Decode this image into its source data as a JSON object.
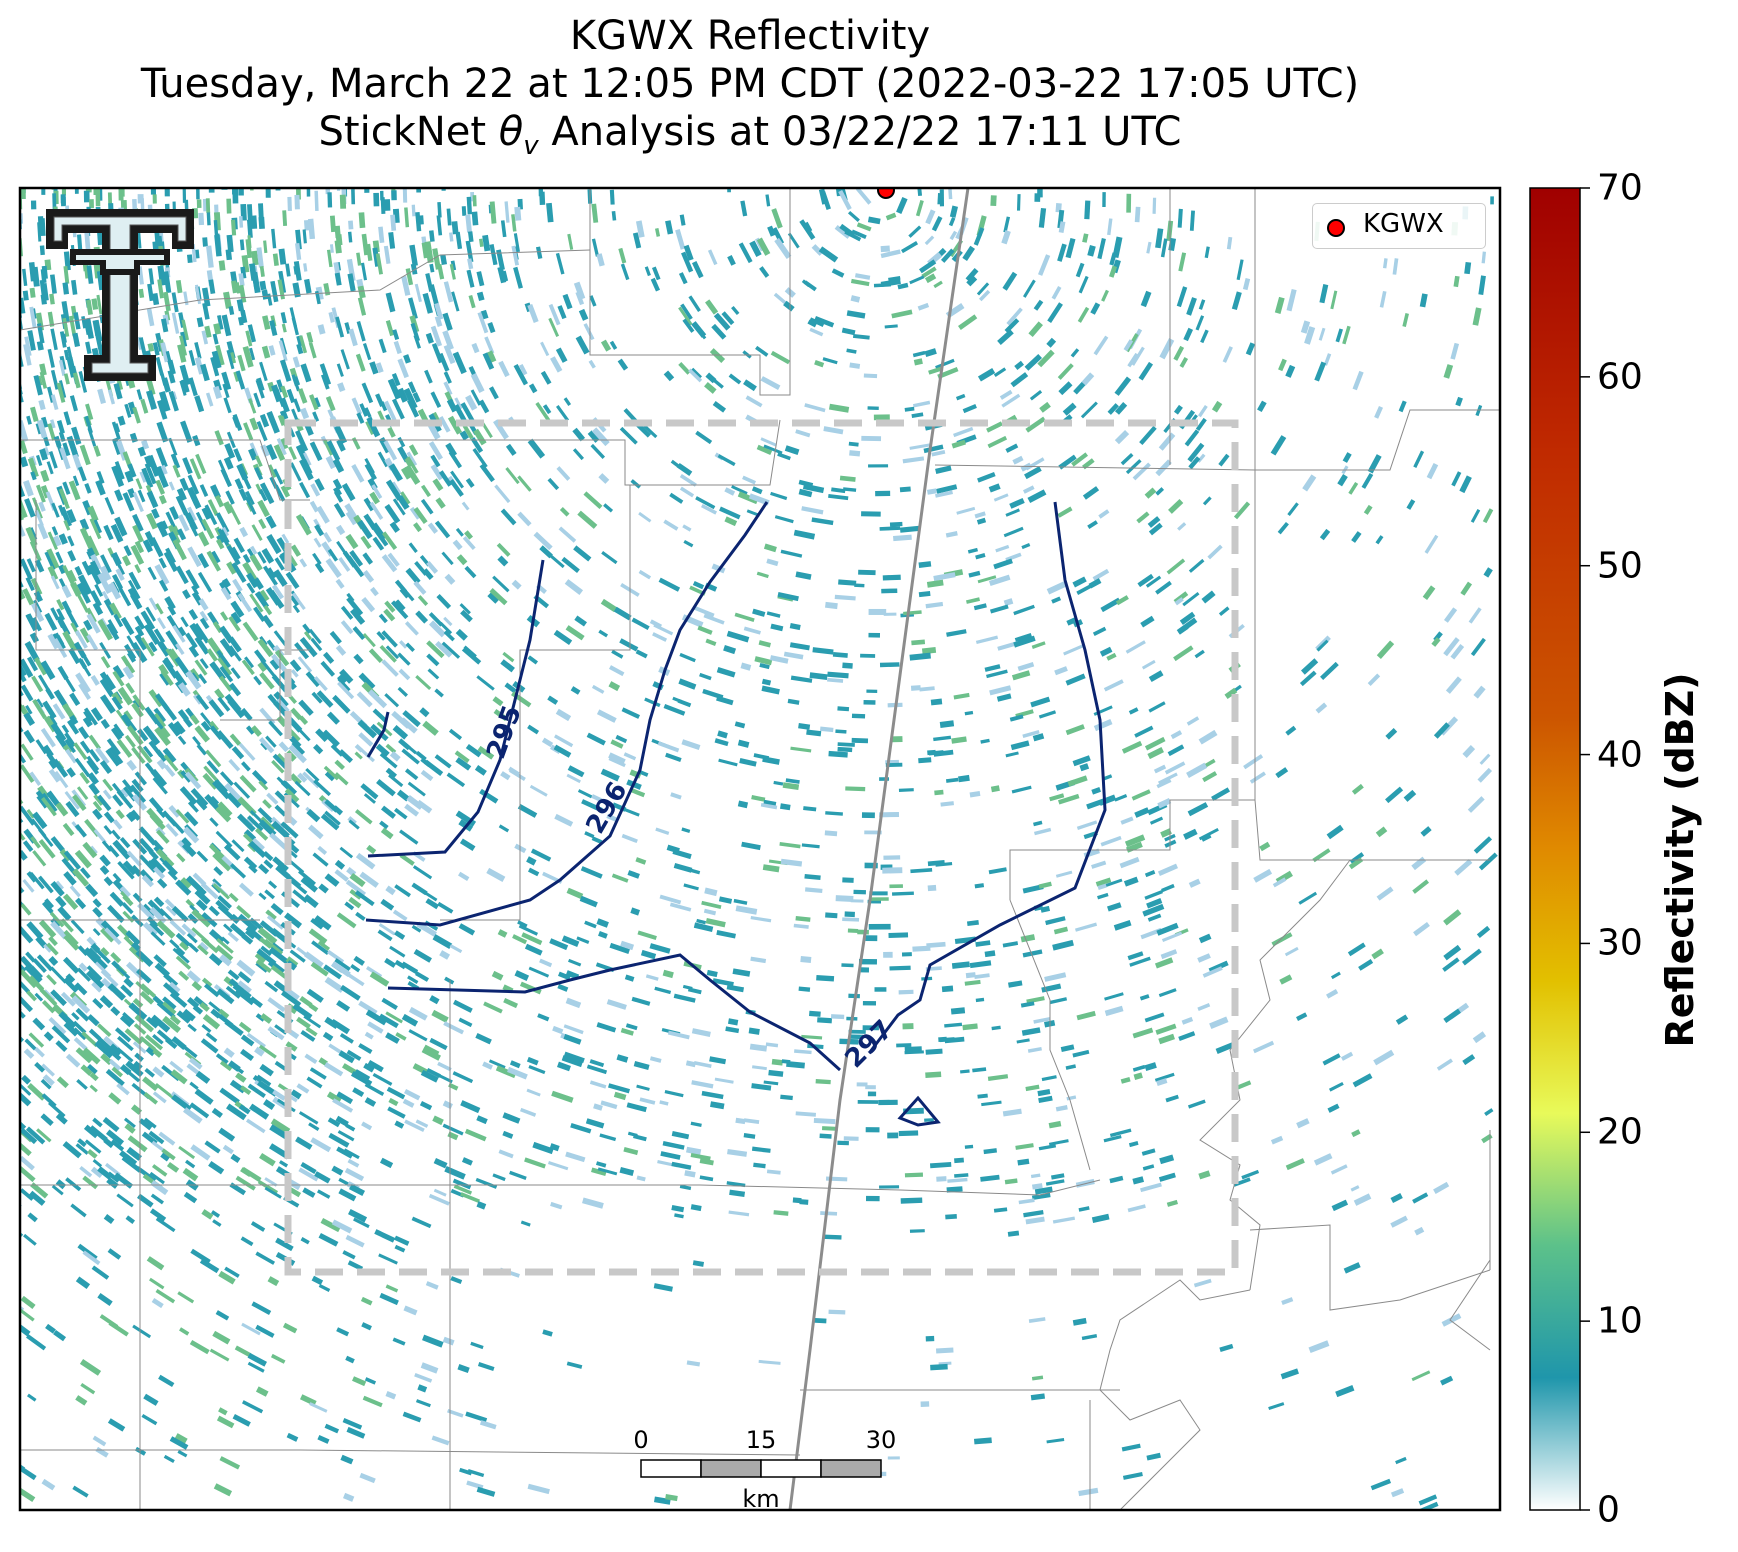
{
  "title": {
    "line1": "KGWX Reflectivity",
    "line2": "Tuesday, March 22 at 12:05 PM CDT (2022-03-22 17:05 UTC)",
    "line3_prefix": "StickNet ",
    "line3_symbol": "θ",
    "line3_subscript": "v",
    "line3_suffix": " Analysis at 03/22/22 17:11 UTC"
  },
  "legend": {
    "label": "KGWX",
    "marker_color": "#ff0000"
  },
  "colorbar": {
    "label": "Reflectivity (dBZ)",
    "min": 0,
    "max": 70,
    "ticks": [
      "0",
      "10",
      "20",
      "30",
      "40",
      "50",
      "60",
      "70"
    ]
  },
  "contours": [
    {
      "label": "295",
      "color": "#0b2470"
    },
    {
      "label": "296",
      "color": "#0b2470"
    },
    {
      "label": "297",
      "color": "#0b2470"
    }
  ],
  "scale_bar": {
    "ticks": [
      "0",
      "15",
      "30"
    ],
    "unit": "km"
  },
  "colors": {
    "contour": "#0b2470",
    "radar_low": "#a8d0e6",
    "radar_mid": "#2a9db0",
    "radar_high": "#6cc08b",
    "analysis_box": "#c8c8c8",
    "boundary": "#808080",
    "highway": "#888888"
  },
  "logo": {
    "name": "double-t-logo"
  }
}
